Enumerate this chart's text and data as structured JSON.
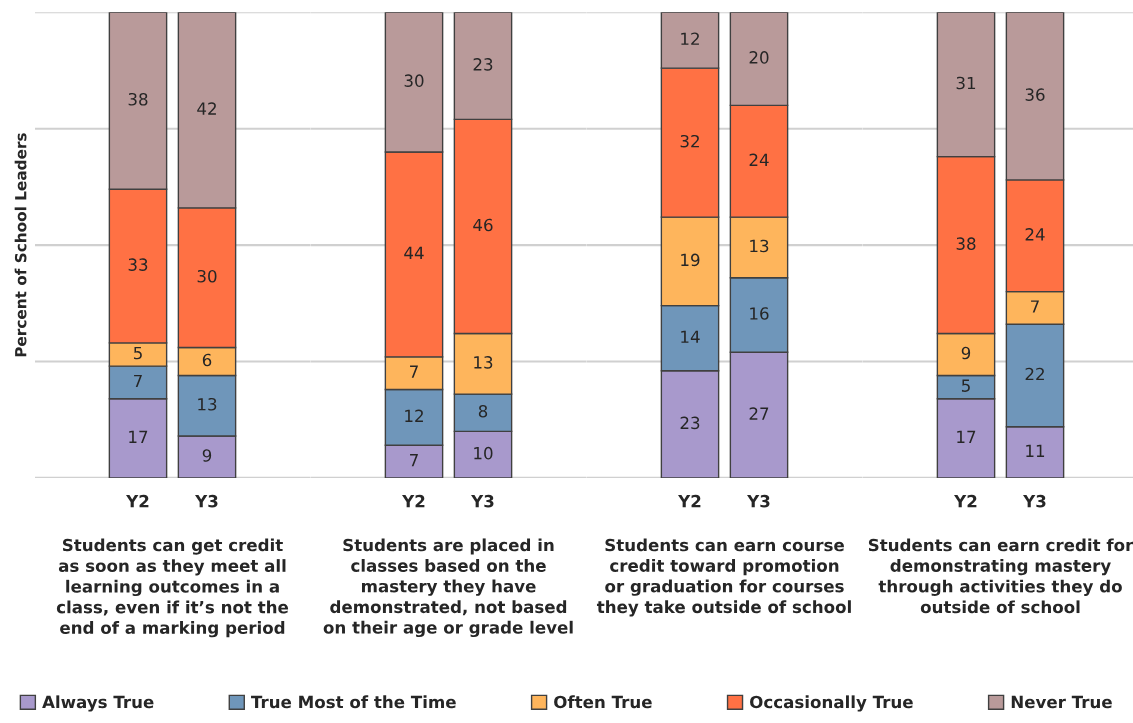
{
  "chart_data": [
    {
      "type": "bar",
      "stacked": true,
      "ylabel": "Percent of School Leaders",
      "xlabel": "Students can get credit\nas soon as they meet all\nlearning outcomes in a\nclass, even if it’s not the\nend of a marking period",
      "categories": [
        "Y2",
        "Y3"
      ],
      "series": [
        {
          "name": "Always True",
          "color": "#a899cc",
          "values": [
            17,
            9
          ]
        },
        {
          "name": "True Most of the Time",
          "color": "#6f96ba",
          "values": [
            7,
            13
          ]
        },
        {
          "name": "Often True",
          "color": "#feb55c",
          "values": [
            5,
            6
          ]
        },
        {
          "name": "Occasionally True",
          "color": "#ff7144",
          "values": [
            33,
            30
          ]
        },
        {
          "name": "Never True",
          "color": "#b99a9a",
          "values": [
            38,
            42
          ]
        }
      ],
      "ylim": [
        0,
        100
      ],
      "yticks": [
        0,
        25,
        50,
        75,
        100
      ],
      "tick_labels": "x",
      "grid": "y",
      "legend": "bottom",
      "data_labels": true
    },
    {
      "type": "bar",
      "stacked": true,
      "xlabel": "Students are placed in\nclasses based on the\nmastery they have\ndemonstrated, not based\non their age or grade level",
      "categories": [
        "Y2",
        "Y3"
      ],
      "series": [
        {
          "color": "#a899cc",
          "values": [
            7,
            10
          ]
        },
        {
          "color": "#6f96ba",
          "values": [
            12,
            8
          ]
        },
        {
          "color": "#feb55c",
          "values": [
            7,
            13
          ]
        },
        {
          "color": "#ff7144",
          "values": [
            44,
            46
          ]
        },
        {
          "color": "#b99a9a",
          "values": [
            30,
            23
          ]
        }
      ],
      "ylim": [
        0,
        100
      ],
      "yticks": [
        0,
        25,
        50,
        75,
        100
      ],
      "tick_labels": "x",
      "grid": "y",
      "data_labels": true
    },
    {
      "type": "bar",
      "stacked": true,
      "xlabel": "Students can earn course\ncredit toward promotion\nor graduation for courses\nthey take outside of school",
      "categories": [
        "Y2",
        "Y3"
      ],
      "series": [
        {
          "color": "#a899cc",
          "values": [
            23,
            27
          ]
        },
        {
          "color": "#6f96ba",
          "values": [
            14,
            16
          ]
        },
        {
          "color": "#feb55c",
          "values": [
            19,
            13
          ]
        },
        {
          "color": "#ff7144",
          "values": [
            32,
            24
          ]
        },
        {
          "color": "#b99a9a",
          "values": [
            12,
            20
          ]
        }
      ],
      "ylim": [
        0,
        100
      ],
      "yticks": [
        0,
        25,
        50,
        75,
        100
      ],
      "tick_labels": "x",
      "grid": "y",
      "data_labels": true
    },
    {
      "type": "bar",
      "stacked": true,
      "xlabel": "Students can earn credit for\ndemonstrating mastery\nthrough activities they do\noutside of school",
      "categories": [
        "Y2",
        "Y3"
      ],
      "series": [
        {
          "color": "#a899cc",
          "values": [
            17,
            11
          ]
        },
        {
          "color": "#6f96ba",
          "values": [
            5,
            22
          ]
        },
        {
          "color": "#feb55c",
          "values": [
            9,
            7
          ]
        },
        {
          "color": "#ff7144",
          "values": [
            38,
            24
          ]
        },
        {
          "color": "#b99a9a",
          "values": [
            31,
            36
          ]
        }
      ],
      "ylim": [
        0,
        100
      ],
      "yticks": [
        0,
        25,
        50,
        75,
        100
      ],
      "tick_labels": "x",
      "grid": "y",
      "data_labels": true
    }
  ]
}
